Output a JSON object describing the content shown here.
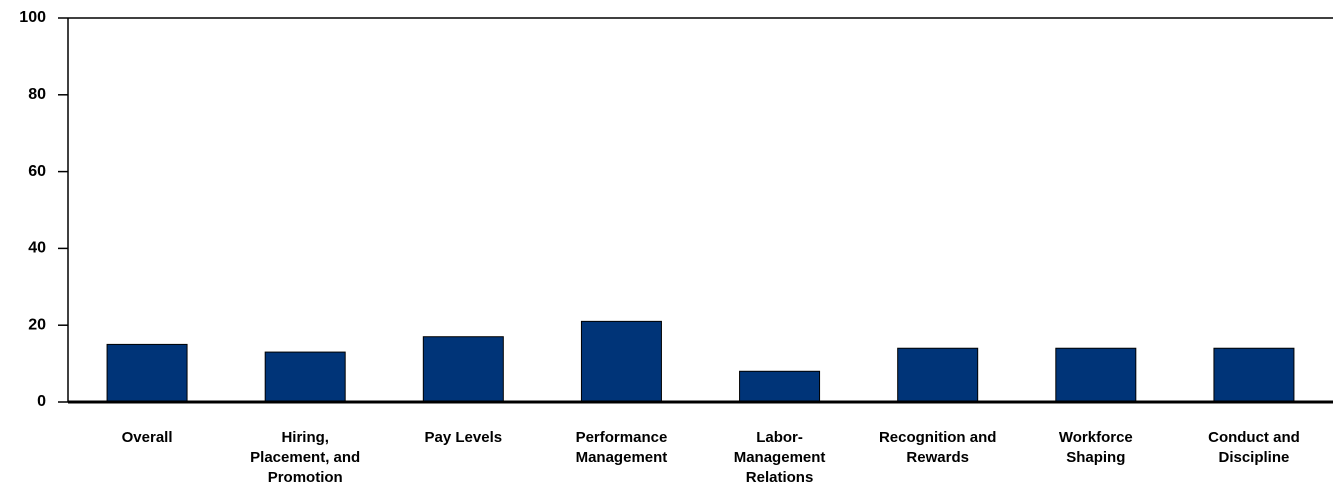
{
  "chart_data": {
    "type": "bar",
    "categories": [
      "Overall",
      "Hiring,\nPlacement, and\nPromotion",
      "Pay Levels",
      "Performance\nManagement",
      "Labor-\nManagement\nRelations",
      "Recognition and\nRewards",
      "Workforce\nShaping",
      "Conduct and\nDiscipline"
    ],
    "values": [
      15,
      13,
      17,
      21,
      8,
      14,
      14,
      14
    ],
    "color": "#003478",
    "ylim": [
      0,
      100
    ],
    "yticks": [
      0,
      20,
      40,
      60,
      80,
      100
    ],
    "grid": false
  }
}
